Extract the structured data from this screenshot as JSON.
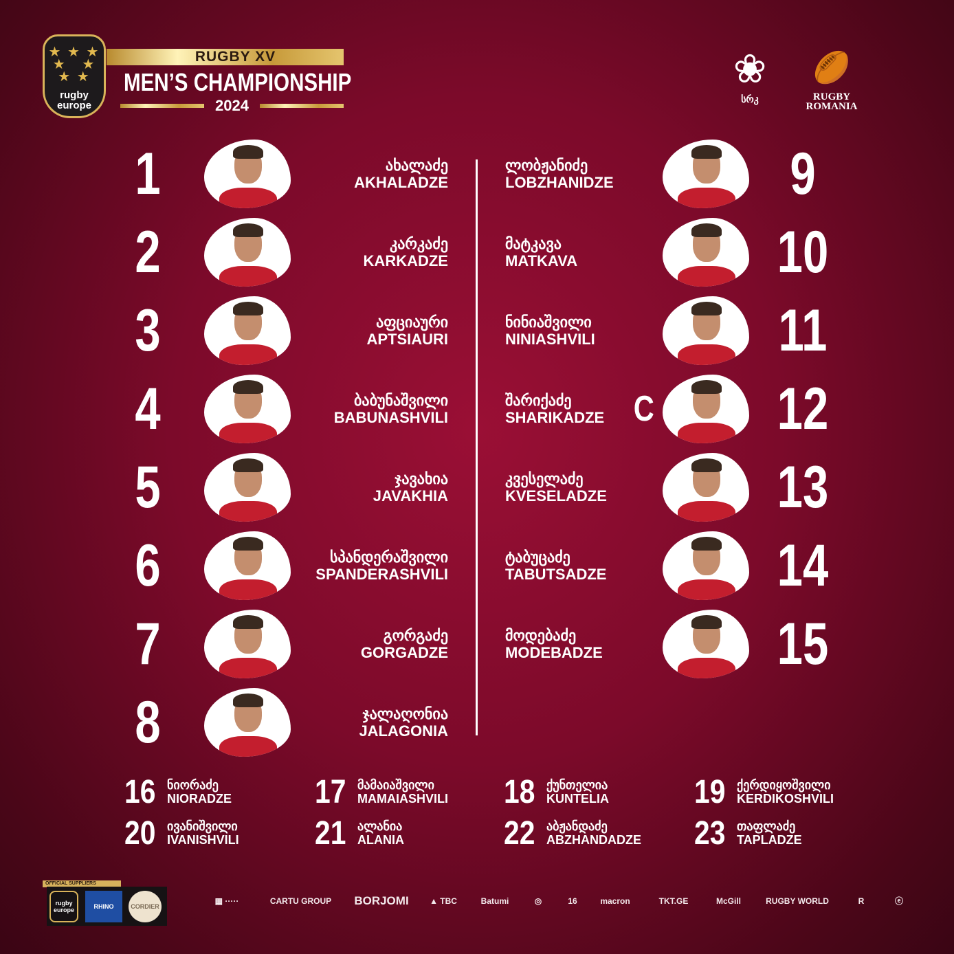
{
  "header": {
    "logo_text": "rugby europe",
    "line1": "RUGBY XV",
    "line2": "MEN’S CHAMPIONSHIP",
    "year": "2024"
  },
  "partners": {
    "gfu_text": "სრკ",
    "romania_line1": "RUGBY",
    "romania_line2": "ROMANIA"
  },
  "colors": {
    "background": "#7c0a2a",
    "gold": "#d9b35a",
    "shirt": "#c31e2e"
  },
  "captain_mark": "C",
  "starters": [
    {
      "number": "1",
      "ka": "ახალაძე",
      "en": "AKHALADZE"
    },
    {
      "number": "2",
      "ka": "კარკაძე",
      "en": "KARKADZE"
    },
    {
      "number": "3",
      "ka": "აფციაური",
      "en": "APTSIAURI"
    },
    {
      "number": "4",
      "ka": "ბაბუნაშვილი",
      "en": "BABUNASHVILI"
    },
    {
      "number": "5",
      "ka": "ჯავახია",
      "en": "JAVAKHIA"
    },
    {
      "number": "6",
      "ka": "სპანდერაშვილი",
      "en": "SPANDERASHVILI"
    },
    {
      "number": "7",
      "ka": "გორგაძე",
      "en": "GORGADZE"
    },
    {
      "number": "8",
      "ka": "ჯალაღონია",
      "en": "JALAGONIA"
    },
    {
      "number": "9",
      "ka": "ლობჟანიძე",
      "en": "LOBZHANIDZE"
    },
    {
      "number": "10",
      "ka": "მატკავა",
      "en": "MATKAVA"
    },
    {
      "number": "11",
      "ka": "ნინიაშვილი",
      "en": "NINIASHVILI"
    },
    {
      "number": "12",
      "ka": "შარიქაძე",
      "en": "SHARIKADZE",
      "captain": true
    },
    {
      "number": "13",
      "ka": "კვესელაძე",
      "en": "KVESELADZE"
    },
    {
      "number": "14",
      "ka": "ტაბუცაძე",
      "en": "TABUTSADZE"
    },
    {
      "number": "15",
      "ka": "მოდებაძე",
      "en": "MODEBADZE"
    }
  ],
  "bench": [
    {
      "number": "16",
      "ka": "ნიორაძე",
      "en": "NIORADZE"
    },
    {
      "number": "17",
      "ka": "მამაიაშვილი",
      "en": "MAMAIASHVILI"
    },
    {
      "number": "18",
      "ka": "ქუნთელია",
      "en": "KUNTELIA"
    },
    {
      "number": "19",
      "ka": "ქერდიყოშვილი",
      "en": "KERDIKOSHVILI"
    },
    {
      "number": "20",
      "ka": "ივანიშვილი",
      "en": "IVANISHVILI"
    },
    {
      "number": "21",
      "ka": "ალანია",
      "en": "ALANIA"
    },
    {
      "number": "22",
      "ka": "აბჟანდაძე",
      "en": "ABZHANDADZE"
    },
    {
      "number": "23",
      "ka": "თაფლაძე",
      "en": "TAPLADZE"
    }
  ],
  "footer": {
    "suppliers_label": "OFFICIAL SUPPLIERS",
    "suppliers": [
      "rugby europe",
      "RHINO",
      "CORDIER"
    ],
    "sponsors": [
      "▦ ·····",
      "CARTU GROUP",
      "BORJOMI",
      "▲ TBC",
      "Batumi",
      "◎",
      "16",
      "macron",
      "TKT.GE",
      "McGill",
      "RUGBY WORLD",
      "R",
      "ⓔ"
    ]
  }
}
